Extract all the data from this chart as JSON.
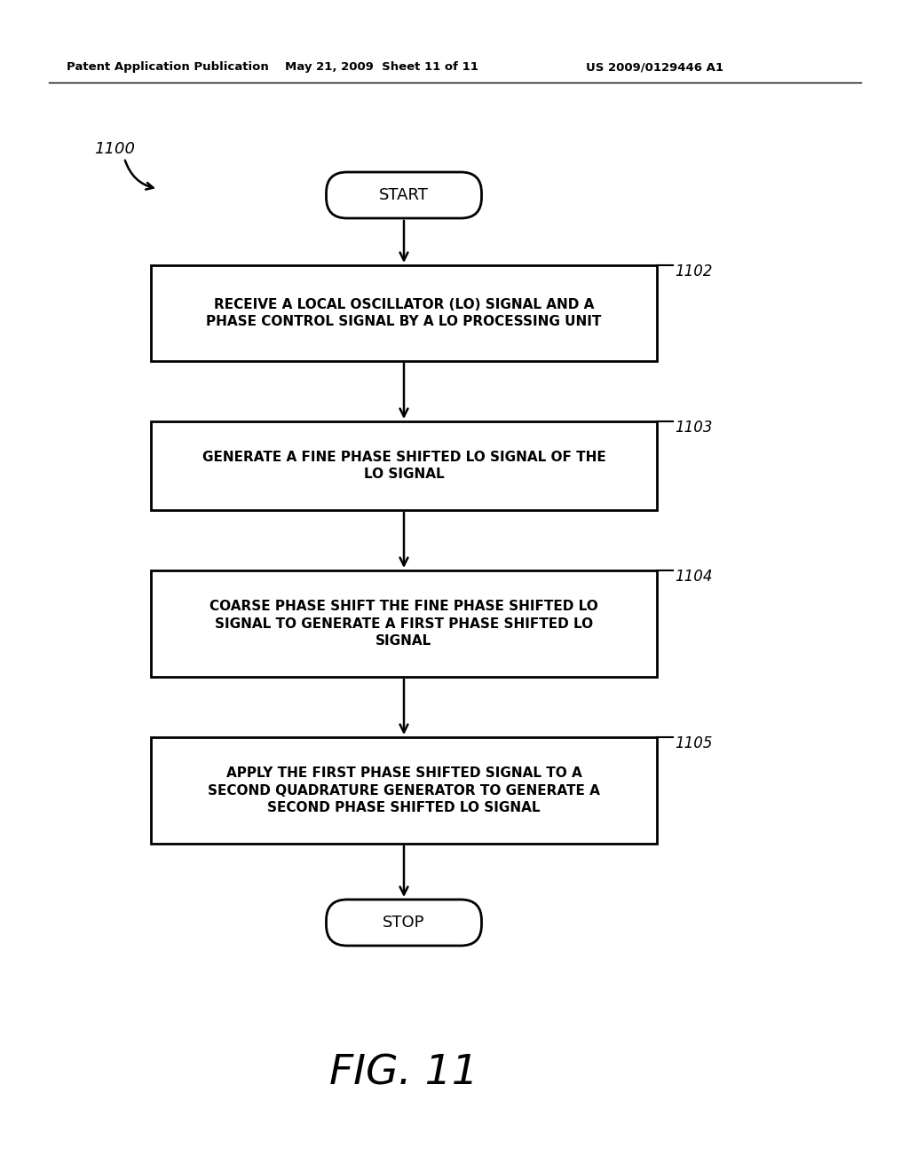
{
  "title": "FIG. 11",
  "header_left": "Patent Application Publication",
  "header_center": "May 21, 2009  Sheet 11 of 11",
  "header_right": "US 2009/0129446 A1",
  "diagram_label": "1100",
  "start_label": "START",
  "stop_label": "STOP",
  "boxes": [
    {
      "label": "RECEIVE A LOCAL OSCILLATOR (LO) SIGNAL AND A\nPHASE CONTROL SIGNAL BY A LO PROCESSING UNIT",
      "tag": "1102"
    },
    {
      "label": "GENERATE A FINE PHASE SHIFTED LO SIGNAL OF THE\nLO SIGNAL",
      "tag": "1103"
    },
    {
      "label": "COARSE PHASE SHIFT THE FINE PHASE SHIFTED LO\nSIGNAL TO GENERATE A FIRST PHASE SHIFTED LO\nSIGNAL",
      "tag": "1104"
    },
    {
      "label": "APPLY THE FIRST PHASE SHIFTED SIGNAL TO A\nSECOND QUADRATURE GENERATOR TO GENERATE A\nSECOND PHASE SHIFTED LO SIGNAL",
      "tag": "1105"
    }
  ],
  "bg_color": "#ffffff",
  "box_color": "#000000",
  "text_color": "#000000",
  "arrow_color": "#000000"
}
